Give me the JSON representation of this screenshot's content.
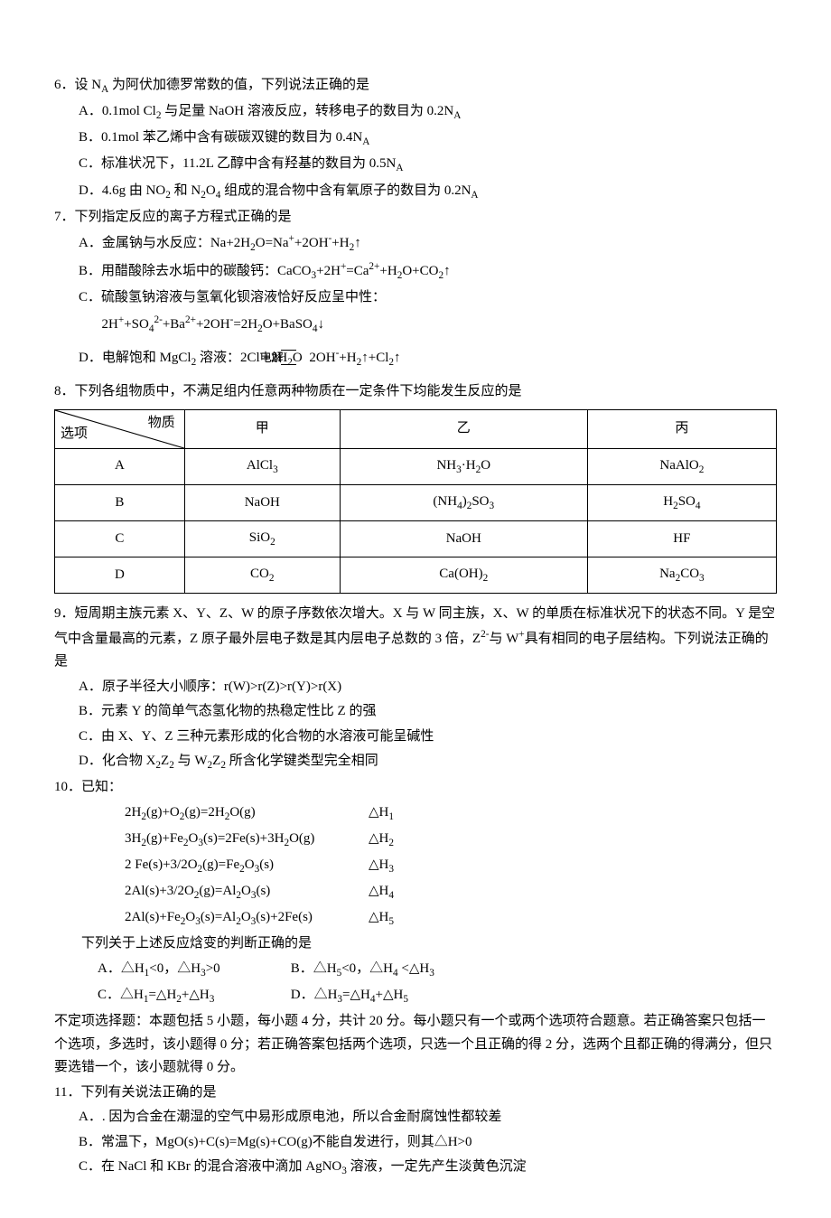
{
  "q6": {
    "stem": "6．设 N_A 为阿伏加德罗常数的值，下列说法正确的是",
    "A": "A．0.1mol Cl₂ 与足量 NaOH 溶液反应，转移电子的数目为 0.2N_A",
    "B": "B．0.1mol 苯乙烯中含有碳碳双键的数目为 0.4N_A",
    "C": "C．标准状况下，11.2L 乙醇中含有羟基的数目为 0.5N_A",
    "D": "D．4.6g 由 NO₂ 和 N₂O₄ 组成的混合物中含有氧原子的数目为 0.2N_A"
  },
  "q7": {
    "stem": "7．下列指定反应的离子方程式正确的是",
    "A": "A．金属钠与水反应：Na+2H₂O=Na⁺+2OH⁻+H₂↑",
    "B": "B．用醋酸除去水垢中的碳酸钙：CaCO₃+2H⁺=Ca²⁺+H₂O+CO₂↑",
    "C1": "C．硫酸氢钠溶液与氢氧化钡溶液恰好反应呈中性：",
    "C2": "2H⁺+SO₄²⁻+Ba²⁺+2OH⁻=2H₂O+BaSO₄↓",
    "D_pre": "D．电解饱和 MgCl₂ 溶液：2Cl⁻+2H₂O",
    "D_mid": "电解",
    "D_post": " 2OH⁻+H₂↑+Cl₂↑"
  },
  "q8": {
    "stem": "8．下列各组物质中，不满足组内任意两种物质在一定条件下均能发生反应的是",
    "headers": {
      "diag_top": "物质",
      "diag_bot": "选项",
      "c1": "甲",
      "c2": "乙",
      "c3": "丙"
    },
    "rows": [
      {
        "opt": "A",
        "c1": "AlCl₃",
        "c2": "NH₃·H₂O",
        "c3": "NaAlO₂"
      },
      {
        "opt": "B",
        "c1": "NaOH",
        "c2": "(NH₄)₂SO₃",
        "c3": "H₂SO₄"
      },
      {
        "opt": "C",
        "c1": "SiO₂",
        "c2": "NaOH",
        "c3": "HF"
      },
      {
        "opt": "D",
        "c1": "CO₂",
        "c2": "Ca(OH)₂",
        "c3": "Na₂CO₃"
      }
    ]
  },
  "q9": {
    "stem": "9．短周期主族元素 X、Y、Z、W 的原子序数依次增大。X 与 W 同主族，X、W 的单质在标准状况下的状态不同。Y 是空气中含量最高的元素，Z 原子最外层电子数是其内层电子总数的 3 倍，Z²⁻与 W⁺具有相同的电子层结构。下列说法正确的是",
    "A": "A．原子半径大小顺序：r(W)>r(Z)>r(Y)>r(X)",
    "B": "B．元素 Y 的简单气态氢化物的热稳定性比 Z 的强",
    "C": "C．由 X、Y、Z 三种元素形成的化合物的水溶液可能呈碱性",
    "D": "D．化合物 X₂Z₂ 与 W₂Z₂ 所含化学键类型完全相同"
  },
  "q10": {
    "stem": "10．已知：",
    "eq1a": "2H₂(g)+O₂(g)=2H₂O(g)",
    "eq1b": "△H₁",
    "eq2a": "3H₂(g)+Fe₂O₃(s)=2Fe(s)+3H₂O(g)",
    "eq2b": "△H₂",
    "eq3a": "2 Fe(s)+3/2O₂(g)=Fe₂O₃(s)",
    "eq3b": "△H₃",
    "eq4a": "2Al(s)+3/2O₂(g)=Al₂O₃(s)",
    "eq4b": "△H₄",
    "eq5a": "2Al(s)+Fe₂O₃(s)=Al₂O₃(s)+2Fe(s)",
    "eq5b": "△H₅",
    "sub": "下列关于上述反应焓变的判断正确的是",
    "A": "A．△H₁<0，△H₃>0",
    "B": "B．△H₅<0，△H₄ <△H₃",
    "C": "C．△H₁=△H₂+△H₃",
    "D": "D．△H₃=△H₄+△H₅"
  },
  "instr": "不定项选择题：本题包括 5 小题，每小题 4 分，共计 20 分。每小题只有一个或两个选项符合题意。若正确答案只包括一个选项，多选时，该小题得 0 分；若正确答案包括两个选项，只选一个且正确的得 2 分，选两个且都正确的得满分，但只要选错一个，该小题就得 0 分。",
  "q11": {
    "stem": "11．下列有关说法正确的是",
    "A": "A．. 因为合金在潮湿的空气中易形成原电池，所以合金耐腐蚀性都较差",
    "B": "B．常温下，MgO(s)+C(s)=Mg(s)+CO(g)不能自发进行，则其△H>0",
    "C": "C．在 NaCl 和 KBr 的混合溶液中滴加 AgNO₃ 溶液，一定先产生淡黄色沉淀"
  }
}
